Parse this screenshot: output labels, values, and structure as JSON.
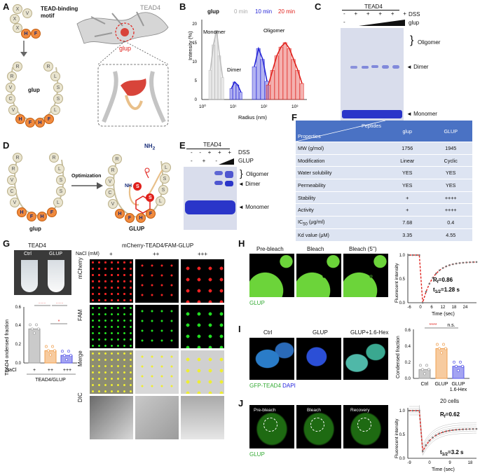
{
  "panels": {
    "A": "A",
    "B": "B",
    "C": "C",
    "D": "D",
    "E": "E",
    "F": "F",
    "G": "G",
    "H": "H",
    "I": "I",
    "J": "J"
  },
  "A": {
    "motif_title": "TEAD-binding motif",
    "motif_beads": [
      "X",
      "V",
      "X",
      "X",
      "H",
      "F"
    ],
    "protein": "TEAD4",
    "ligand": "glup",
    "loop_label": "glup",
    "loop_beads": [
      "R",
      "R",
      "R",
      "L",
      "V",
      "S",
      "C",
      "S",
      "V",
      "L",
      "H",
      "F",
      "H",
      "F",
      "F"
    ]
  },
  "B": {
    "legend_title": "glup",
    "legend": [
      {
        "label": "0 min",
        "color": "#bdbdbd"
      },
      {
        "label": "10 min",
        "color": "#2424d6"
      },
      {
        "label": "20 min",
        "color": "#e0201b"
      }
    ],
    "ylabel": "Intensity (%)",
    "xlabel": "Radius (nm)",
    "xticks": [
      "10⁰",
      "10¹",
      "10²",
      "10³"
    ],
    "yticks": [
      "0",
      "5",
      "10",
      "15",
      "20"
    ],
    "labels": {
      "monomer": "Monomer",
      "dimer": "Dimer",
      "oligomer": "Oligomer"
    }
  },
  "C": {
    "title": "TEAD4",
    "row1_label": "DSS",
    "row2_label": "glup",
    "row1": [
      "-",
      "+",
      "+",
      "+",
      "+",
      "+"
    ],
    "row2": [
      "-",
      "",
      ""
    ],
    "bands": {
      "oligomer": "Oligomer",
      "dimer": "◄ Dimer",
      "monomer": "◄ Monomer"
    }
  },
  "D": {
    "arrow_label": "Optimization",
    "left": "glup",
    "right": "GLUP",
    "nh": "NH",
    "nh2": "NH",
    "nh2_sub": "2",
    "s1": "S",
    "s2": "S"
  },
  "E": {
    "title": "TEAD4",
    "row1_label": "DSS",
    "row2_label": "GLUP",
    "row1": [
      "-",
      "-",
      "+",
      "+",
      "+"
    ],
    "row2": [
      "-",
      "+",
      "-",
      ""
    ],
    "bands": {
      "oligomer": "Oligomer",
      "dimer": "◄ Dimer",
      "monomer": "◄ Monomer"
    }
  },
  "F": {
    "header": {
      "peptides": "Peptides",
      "properties": "Properties",
      "col1": "glup",
      "col2": "GLUP"
    },
    "rows": [
      {
        "prop": "MW (g/mol)",
        "a": "1756",
        "b": "1945"
      },
      {
        "prop": "Modification",
        "a": "Linear",
        "b": "Cyclic"
      },
      {
        "prop": "Water solubility",
        "a": "YES",
        "b": "YES"
      },
      {
        "prop": "Permeability",
        "a": "YES",
        "b": "YES"
      },
      {
        "prop": "Stability",
        "a": "+",
        "b": "++++"
      },
      {
        "prop": "Activity",
        "a": "+",
        "b": "++++"
      },
      {
        "prop": "IC",
        "prop_sub": "50",
        "prop_tail": " (μg/ml)",
        "a": "7.68",
        "b": "0.4"
      },
      {
        "prop": "Kd value (μM)",
        "a": "3.35",
        "b": "4.55"
      }
    ]
  },
  "G": {
    "tube_title": "TEAD4",
    "tubes": [
      "Ctrl",
      "GLUP"
    ],
    "micro_title": "mCherry-TEAD4/FAM-GLUP",
    "nacl_label": "NaCl (mM)",
    "nacl_levels": [
      "+",
      "++",
      "+++"
    ],
    "rows": [
      "mCherry",
      "FAM",
      "Merge",
      "DIC"
    ],
    "bar": {
      "ylabel": "TEAD4 ondensed fraction",
      "yticks": [
        "0.0",
        "0.2",
        "0.4",
        "0.6"
      ],
      "xlabel_row": "NaCl",
      "x": [
        "+",
        "++",
        "+++"
      ],
      "group": "TEAD4/GLUP",
      "sig": [
        "****",
        "****",
        "*"
      ],
      "values": [
        0.36,
        0.13,
        0.08
      ],
      "colors": [
        "#9e9e9e",
        "#f0a050",
        "#5a5ae8"
      ]
    }
  },
  "H": {
    "frames": [
      "Pre-bleach",
      "Bleach",
      "Bleach (5'')"
    ],
    "caption": "GLUP",
    "ylabel": "Fluorecent intensity",
    "xlabel": "Time (sec)",
    "xticks": [
      "-6",
      "0",
      "6",
      "12",
      "18",
      "24"
    ],
    "yticks": [
      "0.0",
      "0.5",
      "1.0"
    ],
    "rf": "R",
    "rf_sub": "f",
    "rf_val": "=0.86",
    "t": "t",
    "t_sub": "1/2",
    "t_val": "=1.28 s"
  },
  "I": {
    "frames": [
      "Ctrl",
      "GLUP",
      "GLUP+1.6-Hex"
    ],
    "caption1": "GFP-TEAD4",
    "caption2": "DAPI",
    "ylabel": "Condensed fraction",
    "yticks": [
      "0.0",
      "0.2",
      "0.4",
      "0.6"
    ],
    "x": [
      "Ctrl",
      "GLUP",
      "GLUP"
    ],
    "x3b": "1.6-Hex",
    "sig": [
      "****",
      "n.s."
    ],
    "values": [
      0.11,
      0.37,
      0.15
    ],
    "colors": [
      "#9e9e9e",
      "#f0a050",
      "#5a5ae8"
    ]
  },
  "J": {
    "frames": [
      "Pre-bleach",
      "Bleach",
      "Recovery"
    ],
    "caption": "GLUP",
    "cells": "20 cells",
    "ylabel": "Fluorecent intensity",
    "xlabel": "Time (sec)",
    "xticks": [
      "-9",
      "0",
      "9",
      "18"
    ],
    "yticks": [
      "0.0",
      "0.5",
      "1.0"
    ],
    "rf": "R",
    "rf_sub": "f",
    "rf_val": "=0.62",
    "t": "t",
    "t_sub": "1/2",
    "t_val": "=3.2 s"
  },
  "colors": {
    "orange": "#f08a3e",
    "beige": "#e9e4cf",
    "blue": "#2a35c9",
    "table_head": "#4a72c4",
    "table_row": "#dde4f2",
    "red": "#e0201b"
  }
}
